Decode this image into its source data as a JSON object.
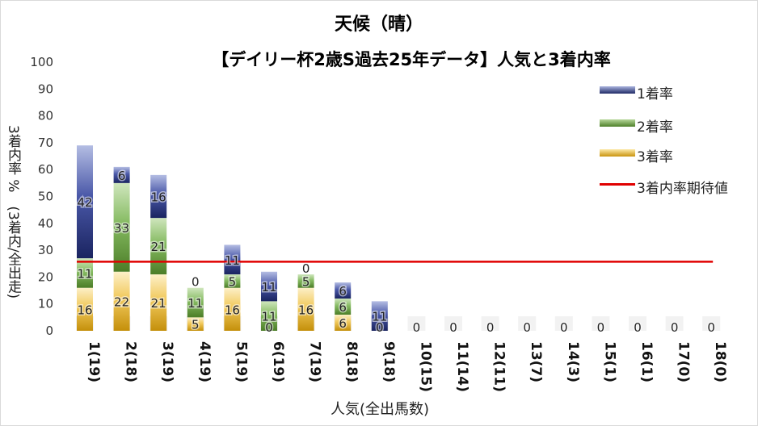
{
  "chart_data": {
    "type": "bar",
    "stacked": true,
    "title": "天候（晴）",
    "subtitle": "【デイリー杯2歳S過去25年データ】人気と3着内率",
    "xlabel": "人気(全出馬数)",
    "ylabel": "3着内率 %　(3着内/全出走)",
    "ylim": [
      0,
      100
    ],
    "yticks": [
      0,
      10,
      20,
      30,
      40,
      50,
      60,
      70,
      80,
      90,
      100
    ],
    "categories": [
      "1(19)",
      "2(18)",
      "3(19)",
      "4(19)",
      "5(19)",
      "6(19)",
      "7(19)",
      "8(18)",
      "9(18)",
      "10(15)",
      "11(14)",
      "12(11)",
      "13(7)",
      "14(3)",
      "15(1)",
      "16(1)",
      "17(0)",
      "18(0)"
    ],
    "series": [
      {
        "name": "3着率",
        "color": "#e8b84a",
        "values": [
          16,
          22,
          21,
          5,
          16,
          0,
          16,
          6,
          0,
          0,
          0,
          0,
          0,
          0,
          0,
          0,
          0,
          0
        ],
        "labels": [
          "16",
          "22",
          "21",
          "5",
          "16",
          "0",
          "16",
          "6",
          "0",
          "0",
          "0",
          "0",
          "0",
          "0",
          "0",
          "0",
          "0",
          "0"
        ]
      },
      {
        "name": "2着率",
        "color": "#6aa84f",
        "values": [
          11,
          33,
          21,
          11,
          5,
          11,
          5,
          6,
          0,
          0,
          0,
          0,
          0,
          0,
          0,
          0,
          0,
          0
        ],
        "labels": [
          "11",
          "33",
          "21",
          "11",
          "5",
          "11",
          "5",
          "6",
          "",
          "",
          "",
          "",
          "",
          "",
          "",
          "",
          "",
          ""
        ]
      },
      {
        "name": "1着率",
        "color": "#3f4c9a",
        "values": [
          42,
          6,
          16,
          0,
          11,
          11,
          0,
          6,
          11,
          0,
          0,
          0,
          0,
          0,
          0,
          0,
          0,
          0
        ],
        "labels": [
          "42",
          "6",
          "16",
          "0",
          "11",
          "11",
          "0",
          "6",
          "11",
          "",
          "",
          "",
          "",
          "",
          "",
          "",
          "",
          ""
        ]
      }
    ],
    "expected_line": {
      "name": "3着内率期待値",
      "value": 25.7,
      "color": "#e00000"
    },
    "legend": "right",
    "grid": false
  }
}
